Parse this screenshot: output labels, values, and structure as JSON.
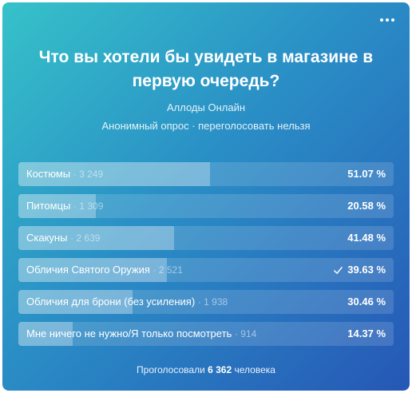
{
  "poll": {
    "title": "Что вы хотели бы увидеть в магазине в первую очередь?",
    "author": "Аллоды Онлайн",
    "meta": "Анонимный опрос · переголосовать нельзя",
    "options": [
      {
        "label": "Костюмы",
        "count": "3 249",
        "percent": "51.07 %",
        "value": 51.07,
        "checked": false
      },
      {
        "label": "Питомцы",
        "count": "1 309",
        "percent": "20.58 %",
        "value": 20.58,
        "checked": false
      },
      {
        "label": "Скакуны",
        "count": "2 639",
        "percent": "41.48 %",
        "value": 41.48,
        "checked": false
      },
      {
        "label": "Обличия Святого Оружия",
        "count": "2 521",
        "percent": "39.63 %",
        "value": 39.63,
        "checked": true
      },
      {
        "label": "Обличия для брони (без усиления)",
        "count": "1 938",
        "percent": "30.46 %",
        "value": 30.46,
        "checked": false
      },
      {
        "label": "Мне ничего не нужно/Я только посмотреть",
        "count": "914",
        "percent": "14.37 %",
        "value": 14.37,
        "checked": false
      }
    ],
    "footer_prefix": "Проголосовали",
    "footer_total": "6 362",
    "footer_suffix": "человека"
  },
  "icons": {
    "more": "more-horizontal-icon",
    "check": "check-icon"
  },
  "colors": {
    "gradient_start": "#36c2c9",
    "gradient_end": "#2657b6"
  }
}
